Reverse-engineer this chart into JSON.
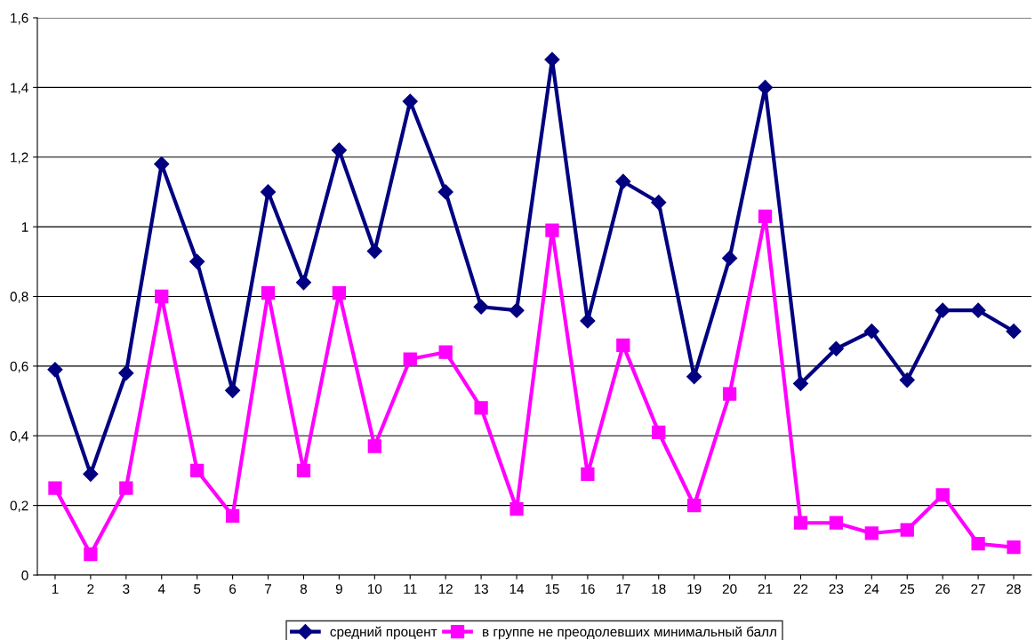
{
  "chart_data": {
    "type": "line",
    "categories": [
      "1",
      "2",
      "3",
      "4",
      "5",
      "6",
      "7",
      "8",
      "9",
      "10",
      "11",
      "12",
      "13",
      "14",
      "15",
      "16",
      "17",
      "18",
      "19",
      "20",
      "21",
      "22",
      "23",
      "24",
      "25",
      "26",
      "27",
      "28"
    ],
    "series": [
      {
        "name": "средний процент",
        "color": "#000080",
        "marker": "diamond",
        "values": [
          0.59,
          0.29,
          0.58,
          1.18,
          0.9,
          0.53,
          1.1,
          0.84,
          1.22,
          0.93,
          1.36,
          1.1,
          0.77,
          0.76,
          1.48,
          0.73,
          1.13,
          1.07,
          0.57,
          0.91,
          1.4,
          0.55,
          0.65,
          0.7,
          0.56,
          0.76,
          0.76,
          0.7
        ]
      },
      {
        "name": "в группе не преодолевших минимальный балл",
        "color": "#ff00ff",
        "marker": "square",
        "values": [
          0.25,
          0.06,
          0.25,
          0.8,
          0.3,
          0.17,
          0.81,
          0.3,
          0.81,
          0.37,
          0.62,
          0.64,
          0.48,
          0.19,
          0.99,
          0.29,
          0.66,
          0.41,
          0.2,
          0.52,
          1.03,
          0.15,
          0.15,
          0.12,
          0.13,
          0.23,
          0.09,
          0.08
        ]
      }
    ],
    "ylim": [
      0,
      1.6
    ],
    "yticks": [
      0,
      {
        "value": 0.2,
        "label": "0,2"
      },
      {
        "value": 0.4,
        "label": "0,4"
      },
      {
        "value": 0.6,
        "label": "0,6"
      },
      {
        "value": 0.8,
        "label": "0,8"
      },
      1,
      {
        "value": 1.2,
        "label": "1,2"
      },
      {
        "value": 1.4,
        "label": "1,4"
      },
      {
        "value": 1.6,
        "label": "1,6"
      }
    ],
    "grid": "y",
    "legend": "bottom",
    "line_style": "solid"
  }
}
